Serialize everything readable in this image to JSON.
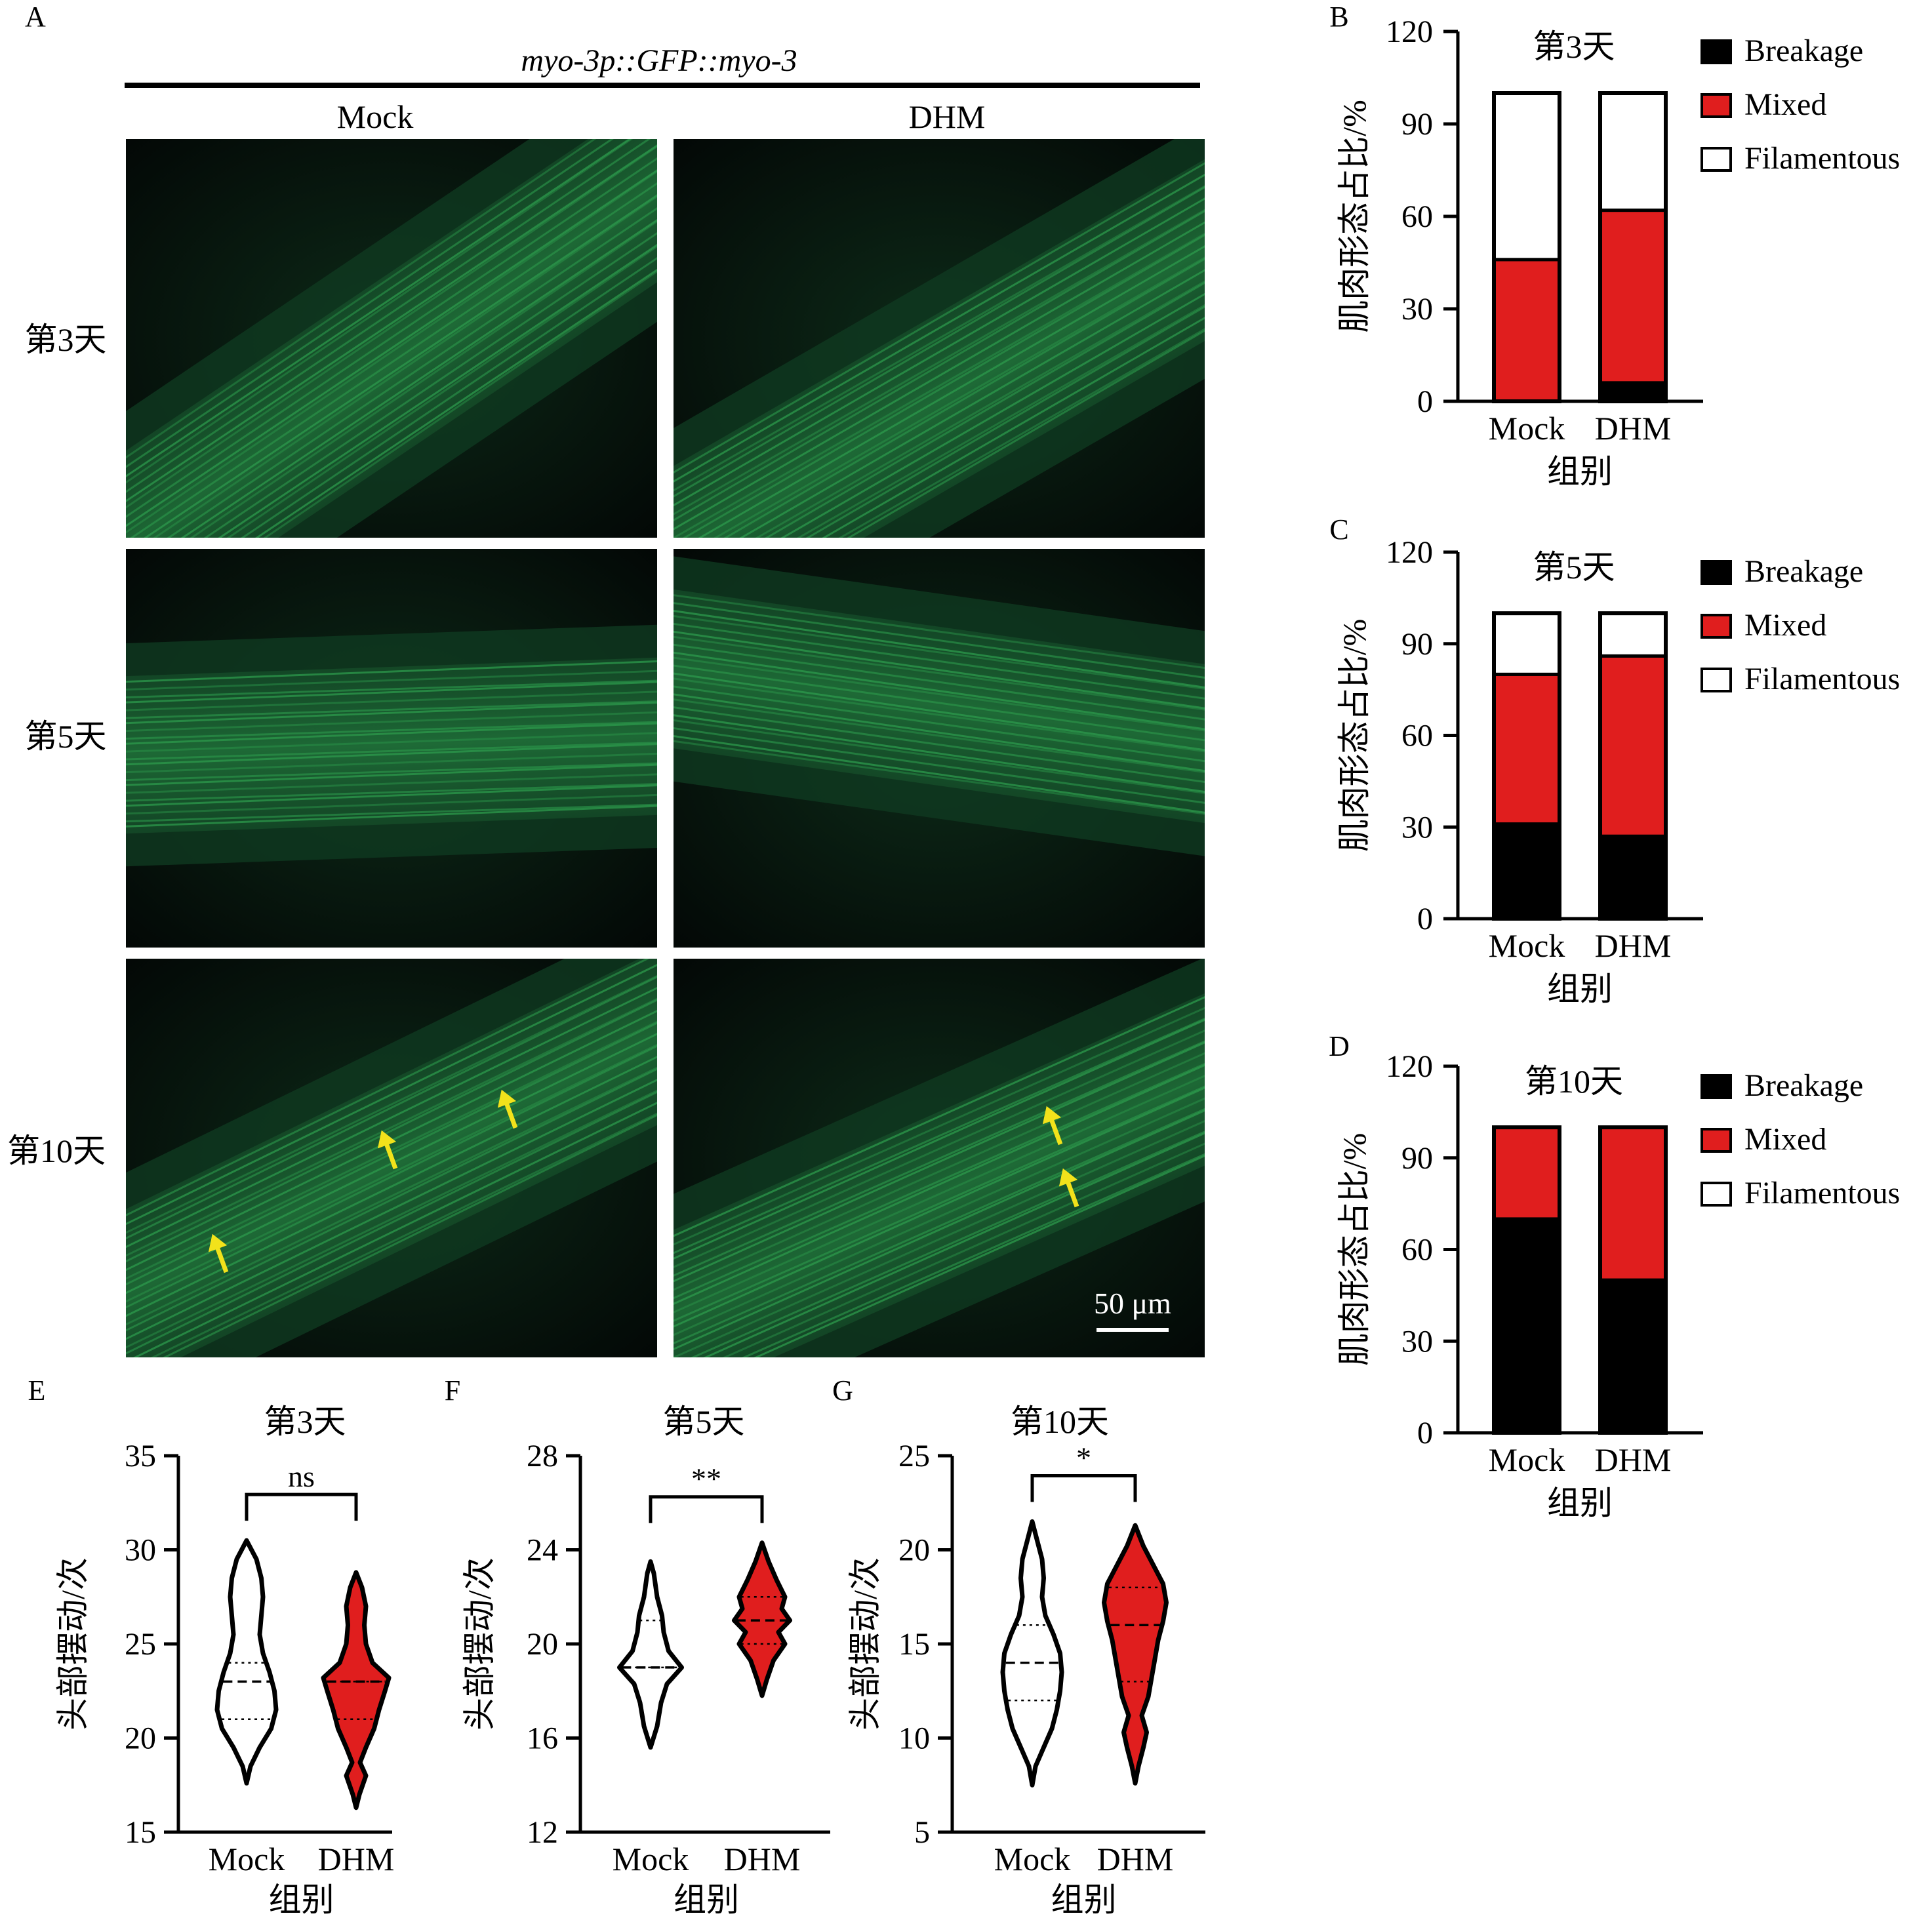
{
  "panel_letters": {
    "A": "A",
    "B": "B",
    "C": "C",
    "D": "D",
    "E": "E",
    "F": "F",
    "G": "G"
  },
  "micro": {
    "title": "myo-3p::GFP::myo-3",
    "columns": [
      "Mock",
      "DHM"
    ],
    "rows": [
      "第3天",
      "第5天",
      "第10天"
    ],
    "scale_bar": "50 μm",
    "arrow_color": "#f2e21b",
    "fluor_color": "#2c9a4c"
  },
  "colors": {
    "breakage": "#000000",
    "mixed": "#e01e1e",
    "filamentous": "#ffffff",
    "mock_violin": "#ffffff",
    "dhm_violin": "#e01e1e"
  },
  "chart_data": [
    {
      "type": "bar",
      "stacked": true,
      "panel": "B",
      "title": "第3天",
      "categories": [
        "Mock",
        "DHM"
      ],
      "series": [
        {
          "name": "Breakage",
          "values": [
            0,
            6
          ]
        },
        {
          "name": "Mixed",
          "values": [
            46,
            56
          ]
        },
        {
          "name": "Filamentous",
          "values": [
            54,
            38
          ]
        }
      ],
      "xlabel": "组别",
      "ylabel": "肌肉形态占比/%",
      "ylim": [
        0,
        120
      ],
      "yticks": [
        "0",
        "30",
        "60",
        "90",
        "120"
      ],
      "legend": "right"
    },
    {
      "type": "bar",
      "stacked": true,
      "panel": "C",
      "title": "第5天",
      "categories": [
        "Mock",
        "DHM"
      ],
      "series": [
        {
          "name": "Breakage",
          "values": [
            31,
            27
          ]
        },
        {
          "name": "Mixed",
          "values": [
            49,
            59
          ]
        },
        {
          "name": "Filamentous",
          "values": [
            20,
            14
          ]
        }
      ],
      "xlabel": "组别",
      "ylabel": "肌肉形态占比/%",
      "ylim": [
        0,
        120
      ],
      "yticks": [
        "0",
        "30",
        "60",
        "90",
        "120"
      ],
      "legend": "right"
    },
    {
      "type": "bar",
      "stacked": true,
      "panel": "D",
      "title": "第10天",
      "categories": [
        "Mock",
        "DHM"
      ],
      "series": [
        {
          "name": "Breakage",
          "values": [
            70,
            50
          ]
        },
        {
          "name": "Mixed",
          "values": [
            30,
            50
          ]
        },
        {
          "name": "Filamentous",
          "values": [
            0,
            0
          ]
        }
      ],
      "xlabel": "组别",
      "ylabel": "肌肉形态占比/%",
      "ylim": [
        0,
        120
      ],
      "yticks": [
        "0",
        "30",
        "60",
        "90",
        "120"
      ],
      "legend": "right"
    },
    {
      "type": "violin",
      "panel": "E",
      "title": "第3天",
      "categories": [
        "Mock",
        "DHM"
      ],
      "xlabel": "组别",
      "ylabel": "头部摆动/次",
      "ylim": [
        15,
        35
      ],
      "yticks": [
        "15",
        "20",
        "25",
        "30",
        "35"
      ],
      "significance": "ns",
      "groups": [
        {
          "name": "Mock",
          "min": 17.6,
          "max": 30.5,
          "median": 23,
          "q1": 21,
          "q3": 24,
          "profile": [
            [
              17.6,
              0
            ],
            [
              18.5,
              0.12
            ],
            [
              19.5,
              0.4
            ],
            [
              20.5,
              0.75
            ],
            [
              21.5,
              0.9
            ],
            [
              22.5,
              0.85
            ],
            [
              23.5,
              0.7
            ],
            [
              24.5,
              0.5
            ],
            [
              25.5,
              0.4
            ],
            [
              26.5,
              0.45
            ],
            [
              27.5,
              0.5
            ],
            [
              28.5,
              0.45
            ],
            [
              29.5,
              0.3
            ],
            [
              30.5,
              0
            ]
          ]
        },
        {
          "name": "DHM",
          "min": 16.3,
          "max": 28.8,
          "median": 23,
          "q1": 21,
          "q3": 23,
          "profile": [
            [
              16.3,
              0
            ],
            [
              17,
              0.1
            ],
            [
              18,
              0.3
            ],
            [
              18.7,
              0.12
            ],
            [
              19.5,
              0.3
            ],
            [
              20.5,
              0.55
            ],
            [
              21.5,
              0.7
            ],
            [
              22.5,
              0.88
            ],
            [
              23.2,
              1
            ],
            [
              24,
              0.5
            ],
            [
              25,
              0.3
            ],
            [
              26,
              0.25
            ],
            [
              27,
              0.3
            ],
            [
              28,
              0.18
            ],
            [
              28.8,
              0
            ]
          ]
        }
      ]
    },
    {
      "type": "violin",
      "panel": "F",
      "title": "第5天",
      "categories": [
        "Mock",
        "DHM"
      ],
      "xlabel": "组别",
      "ylabel": "头部摆动/次",
      "ylim": [
        12,
        28
      ],
      "yticks": [
        "12",
        "16",
        "20",
        "24",
        "28"
      ],
      "significance": "**",
      "groups": [
        {
          "name": "Mock",
          "min": 15.6,
          "max": 23.5,
          "median": 19,
          "q1": 19,
          "q3": 21,
          "profile": [
            [
              15.6,
              0
            ],
            [
              16.5,
              0.2
            ],
            [
              17.5,
              0.32
            ],
            [
              18.3,
              0.5
            ],
            [
              19,
              0.95
            ],
            [
              19.7,
              0.55
            ],
            [
              20.5,
              0.4
            ],
            [
              21.2,
              0.35
            ],
            [
              22,
              0.2
            ],
            [
              23,
              0.1
            ],
            [
              23.5,
              0
            ]
          ]
        },
        {
          "name": "DHM",
          "min": 17.8,
          "max": 24.3,
          "median": 21,
          "q1": 20,
          "q3": 22,
          "profile": [
            [
              17.8,
              0
            ],
            [
              18.5,
              0.15
            ],
            [
              19.3,
              0.35
            ],
            [
              20,
              0.7
            ],
            [
              20.5,
              0.5
            ],
            [
              21,
              0.85
            ],
            [
              21.5,
              0.6
            ],
            [
              22,
              0.7
            ],
            [
              22.7,
              0.45
            ],
            [
              23.5,
              0.2
            ],
            [
              24.3,
              0
            ]
          ]
        }
      ]
    },
    {
      "type": "violin",
      "panel": "G",
      "title": "第10天",
      "categories": [
        "Mock",
        "DHM"
      ],
      "xlabel": "组别",
      "ylabel": "头部摆动/次",
      "ylim": [
        5,
        25
      ],
      "yticks": [
        "5",
        "10",
        "15",
        "20",
        "25"
      ],
      "significance": "*",
      "groups": [
        {
          "name": "Mock",
          "min": 7.5,
          "max": 21.5,
          "median": 14,
          "q1": 12,
          "q3": 16,
          "profile": [
            [
              7.5,
              0
            ],
            [
              8.5,
              0.1
            ],
            [
              9.5,
              0.35
            ],
            [
              10.5,
              0.6
            ],
            [
              11.5,
              0.75
            ],
            [
              12.5,
              0.85
            ],
            [
              13.5,
              0.9
            ],
            [
              14.5,
              0.85
            ],
            [
              15.5,
              0.65
            ],
            [
              16.5,
              0.4
            ],
            [
              17.5,
              0.3
            ],
            [
              18.5,
              0.35
            ],
            [
              19.5,
              0.3
            ],
            [
              20.5,
              0.15
            ],
            [
              21.5,
              0
            ]
          ]
        },
        {
          "name": "DHM",
          "min": 7.6,
          "max": 21.3,
          "median": 16,
          "q1": 13,
          "q3": 18,
          "profile": [
            [
              7.6,
              0
            ],
            [
              8.5,
              0.1
            ],
            [
              9.5,
              0.25
            ],
            [
              10.3,
              0.35
            ],
            [
              11.2,
              0.2
            ],
            [
              12.2,
              0.4
            ],
            [
              13.2,
              0.5
            ],
            [
              14.2,
              0.6
            ],
            [
              15.2,
              0.7
            ],
            [
              16.2,
              0.85
            ],
            [
              17.2,
              0.95
            ],
            [
              18.2,
              0.85
            ],
            [
              19.2,
              0.55
            ],
            [
              20.2,
              0.25
            ],
            [
              21.3,
              0
            ]
          ]
        }
      ]
    }
  ]
}
